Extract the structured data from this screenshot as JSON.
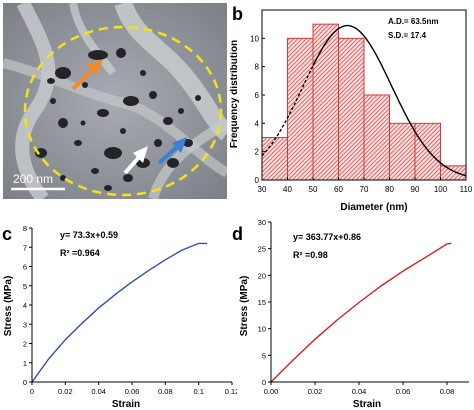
{
  "panels": {
    "a": {
      "letter": "a",
      "scale_bar_label": "200 nm"
    },
    "b": {
      "letter": "b"
    },
    "c": {
      "letter": "c"
    },
    "d": {
      "letter": "d"
    }
  },
  "chart_data": [
    {
      "id": "b",
      "type": "bar",
      "subtype": "histogram-with-normal-fit",
      "bin_edges": [
        30,
        40,
        50,
        60,
        70,
        80,
        90,
        100,
        110
      ],
      "values": [
        3,
        10,
        11,
        10,
        6,
        4,
        4,
        1
      ],
      "fit": {
        "type": "normal",
        "mean": 63.5,
        "sd": 17.4,
        "peak": 10.9
      },
      "xlabel": "Diameter (nm)",
      "ylabel": "Frequency distribution",
      "xlim": [
        30,
        110
      ],
      "ylim": [
        0,
        12
      ],
      "xticks": [
        30,
        40,
        50,
        60,
        70,
        80,
        90,
        100,
        110
      ],
      "yticks": [
        0,
        2,
        4,
        6,
        8,
        10
      ],
      "annotations": [
        "A.D.= 63.5nm",
        "S.D.= 17.4"
      ],
      "bar_color": "#d43a3a",
      "fit_color": "#000000",
      "grid": false
    },
    {
      "id": "c",
      "type": "line",
      "x": [
        0,
        0.01,
        0.02,
        0.03,
        0.04,
        0.05,
        0.06,
        0.07,
        0.08,
        0.09,
        0.1,
        0.105
      ],
      "y": [
        0,
        1.2,
        2.2,
        3.05,
        3.85,
        4.55,
        5.2,
        5.8,
        6.35,
        6.85,
        7.2,
        7.2
      ],
      "xlabel": "Strain",
      "ylabel": "Stress (MPa)",
      "xlim": [
        0,
        0.12
      ],
      "ylim": [
        0,
        8
      ],
      "xticks": [
        "0",
        "0.02",
        "0.04",
        "0.06",
        "0.08",
        "0.1",
        "0.12"
      ],
      "yticks": [
        0,
        1,
        2,
        3,
        4,
        5,
        6,
        7,
        8
      ],
      "annotations": [
        "y= 73.3x+0.59",
        "R² =0.964"
      ],
      "line_color": "#2f4fa8",
      "grid": false
    },
    {
      "id": "d",
      "type": "line",
      "x": [
        0,
        0.01,
        0.02,
        0.03,
        0.04,
        0.05,
        0.06,
        0.07,
        0.08,
        0.082
      ],
      "y": [
        0,
        4.1,
        8.0,
        11.6,
        14.9,
        18.0,
        20.8,
        23.3,
        25.9,
        26.0
      ],
      "xlabel": "Strain",
      "ylabel": "Stress (MPa)",
      "xlim": [
        0,
        0.09
      ],
      "ylim": [
        0,
        30
      ],
      "xticks": [
        "0.00",
        "0.02",
        "0.04",
        "0.06",
        "0.08"
      ],
      "yticks": [
        0,
        5,
        10,
        15,
        20,
        25,
        30
      ],
      "annotations": [
        "y= 363.77x+0.86",
        "R² =0.98"
      ],
      "line_color": "#d42020",
      "grid": false
    }
  ]
}
